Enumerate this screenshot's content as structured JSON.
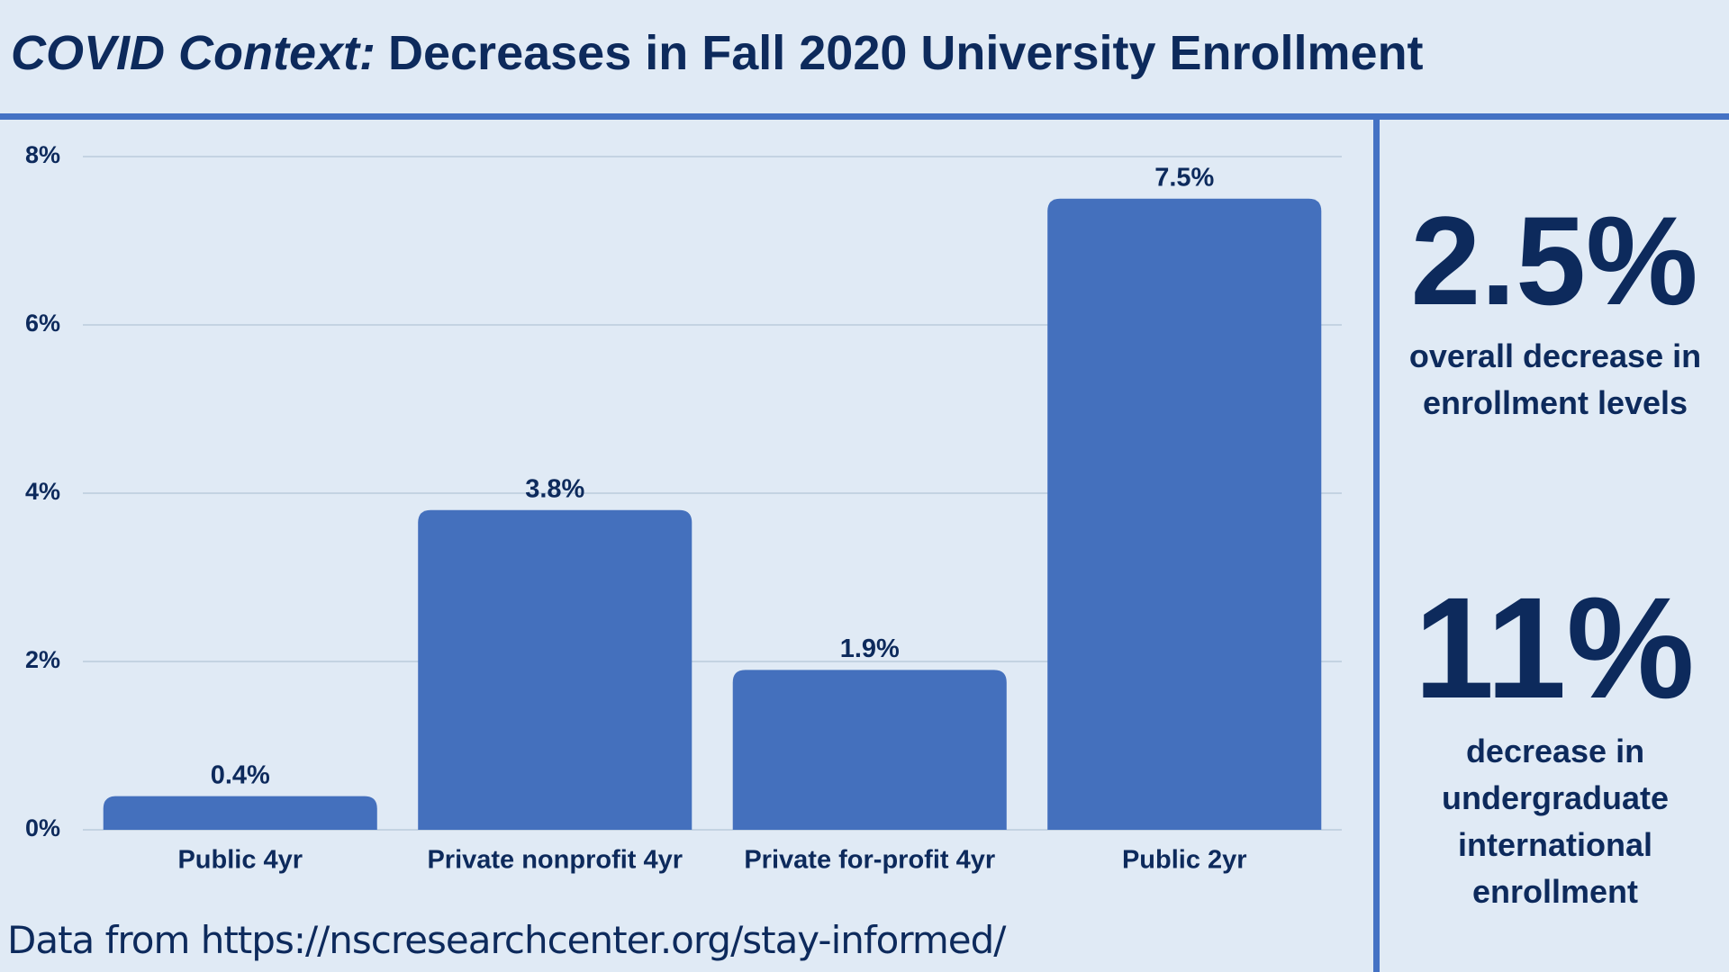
{
  "chart_data": {
    "type": "bar",
    "title_prefix": "COVID Context:",
    "title": "Decreases in Fall 2020 University Enrollment",
    "categories": [
      "Public 4yr",
      "Private nonprofit 4yr",
      "Private for-profit 4yr",
      "Public 2yr"
    ],
    "values": [
      0.4,
      3.8,
      1.9,
      7.5
    ],
    "value_labels": [
      "0.4%",
      "3.8%",
      "1.9%",
      "7.5%"
    ],
    "color": "#4470bd",
    "ylim": [
      0,
      8
    ],
    "yticks": [
      {
        "value": 0,
        "label": "0%"
      },
      {
        "value": 2,
        "label": "2%"
      },
      {
        "value": 4,
        "label": "4%"
      },
      {
        "value": 6,
        "label": "6%"
      },
      {
        "value": 8,
        "label": "8%"
      }
    ],
    "grid": true
  },
  "stats": [
    {
      "value": "2.5%",
      "label": "overall decrease in enrollment levels"
    },
    {
      "value": "11%",
      "label": "decrease in undergraduate international enrollment"
    }
  ],
  "source": "Data from https://nscresearchcenter.org/stay-informed/"
}
